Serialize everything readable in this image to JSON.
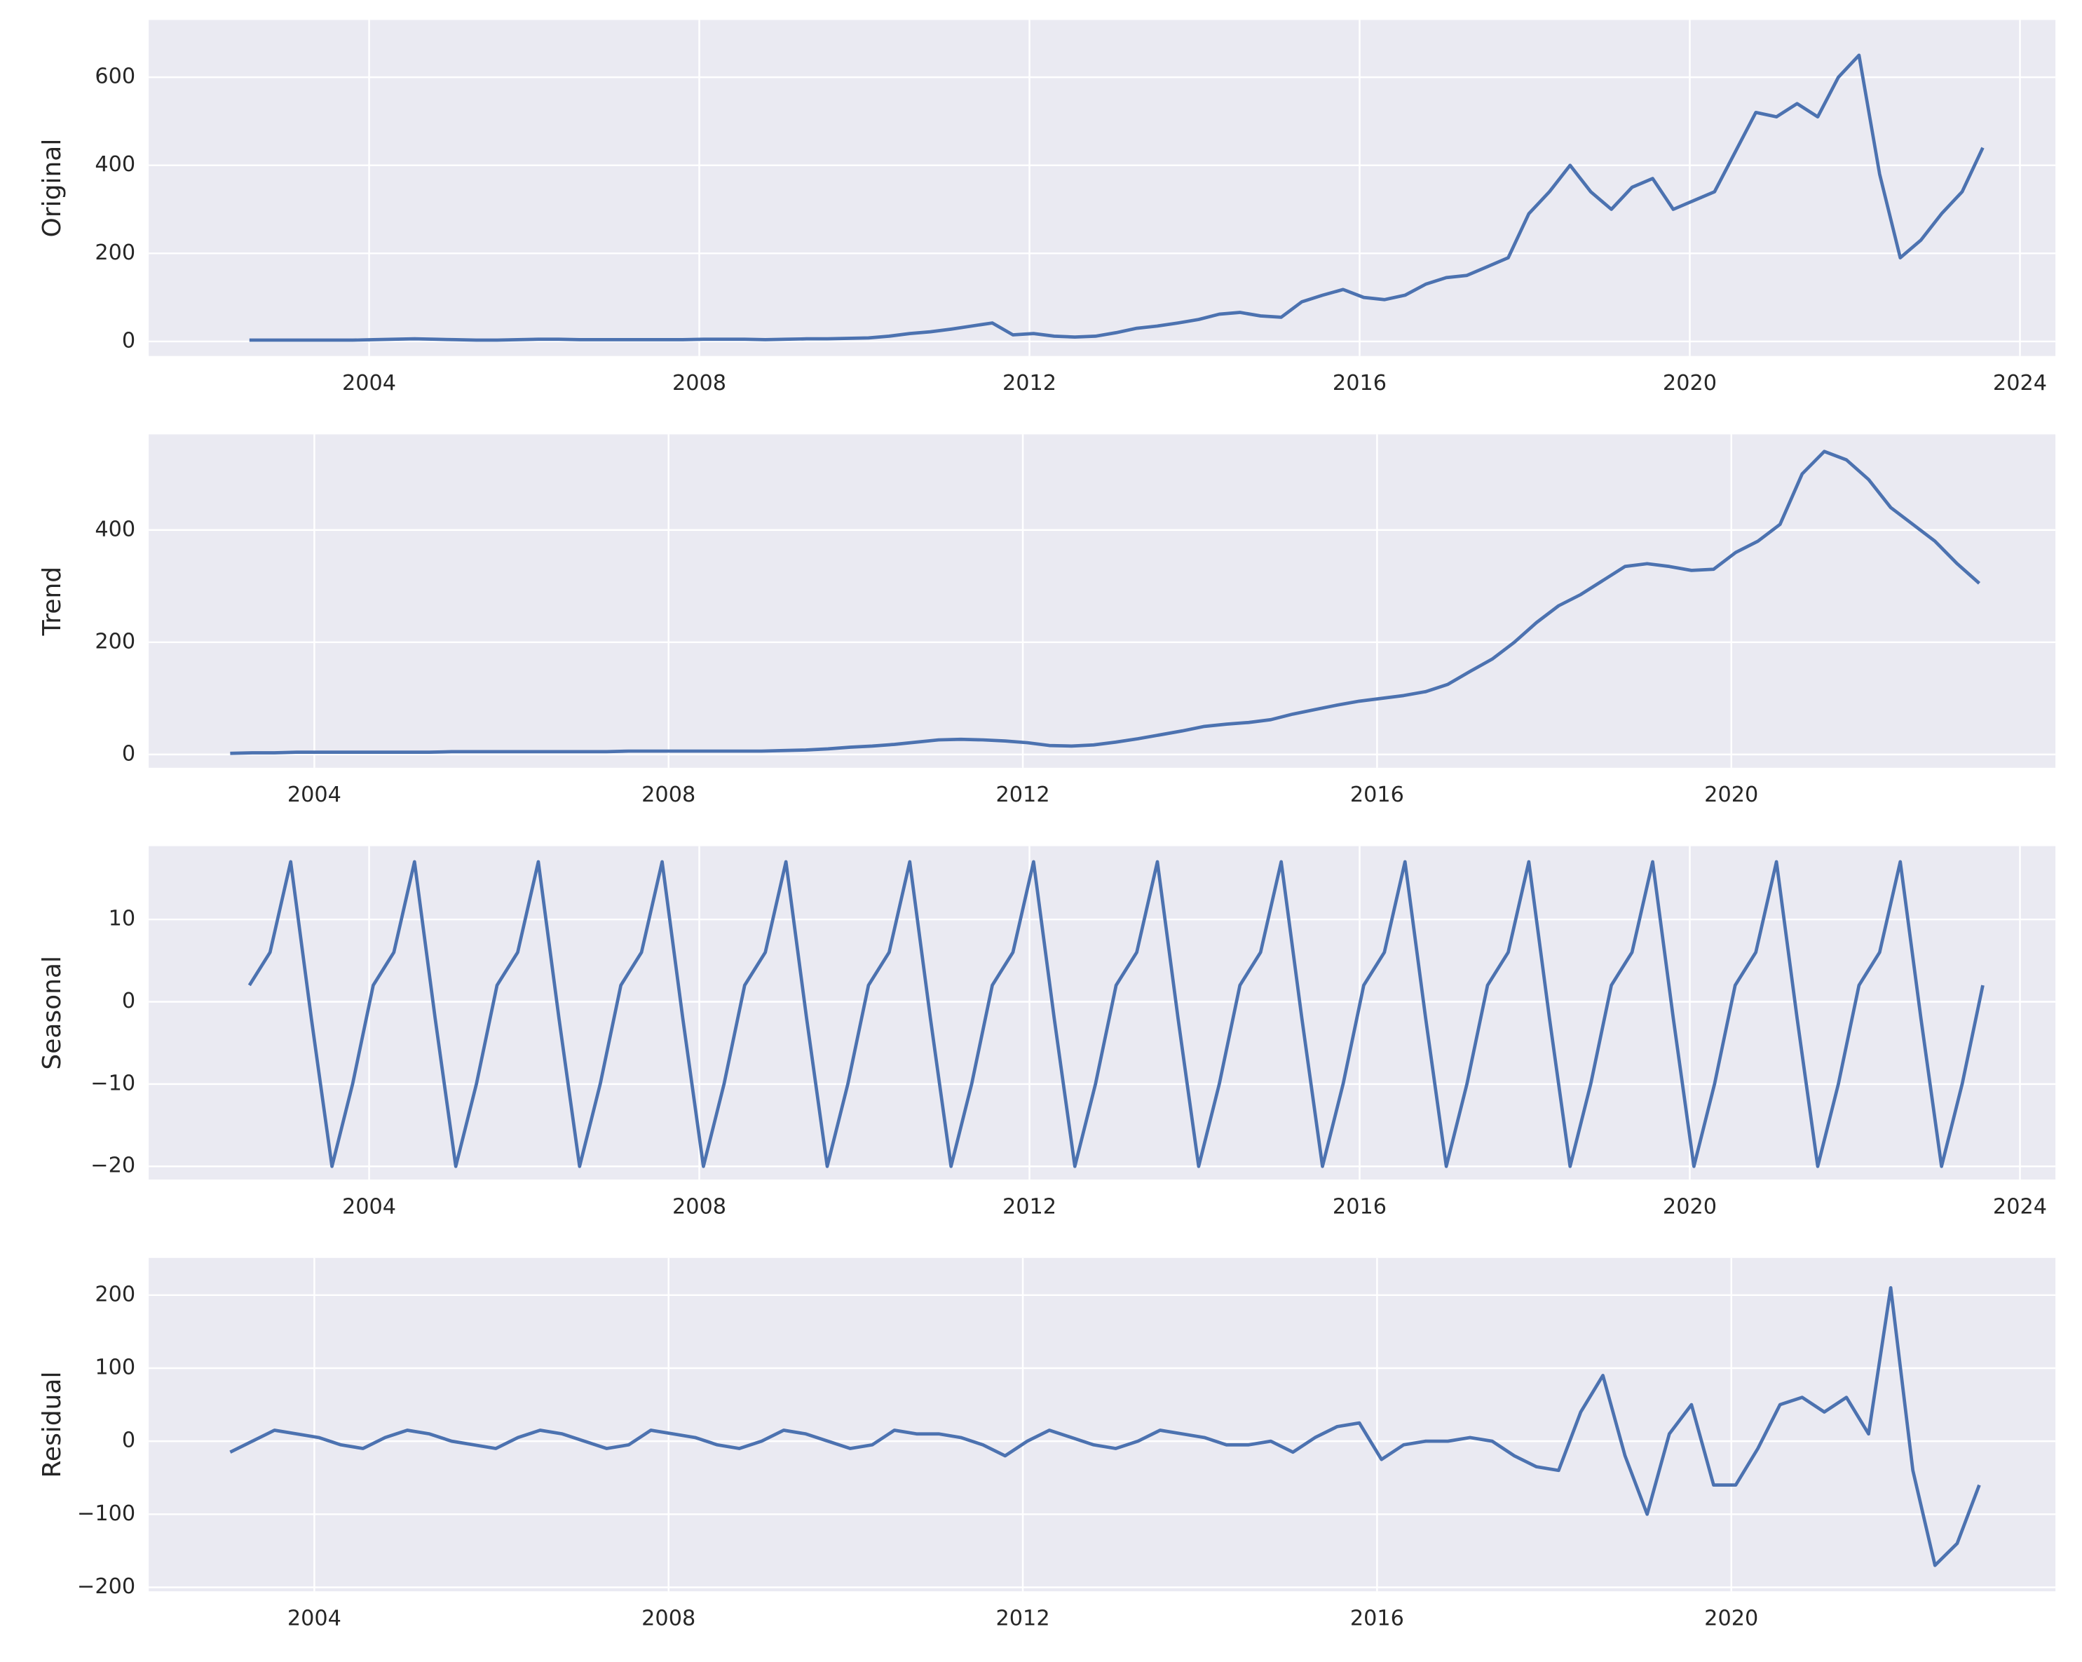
{
  "chart_data": [
    {
      "type": "line",
      "ylabel": "Original",
      "color": "#4c72b0",
      "grid": true,
      "xlim": [
        2001.33,
        2024.43
      ],
      "ylim": [
        -33,
        730
      ],
      "xticks": [
        2004,
        2008,
        2012,
        2016,
        2020,
        2024
      ],
      "yticks": [
        0,
        200,
        400,
        600
      ],
      "x": [
        2002.55,
        2002.8,
        2003.05,
        2003.3,
        2003.55,
        2003.8,
        2004.05,
        2004.3,
        2004.55,
        2004.8,
        2005.05,
        2005.3,
        2005.55,
        2005.8,
        2006.05,
        2006.3,
        2006.55,
        2006.8,
        2007.05,
        2007.3,
        2007.55,
        2007.8,
        2008.05,
        2008.3,
        2008.55,
        2008.8,
        2009.05,
        2009.3,
        2009.55,
        2009.8,
        2010.05,
        2010.3,
        2010.55,
        2010.8,
        2011.05,
        2011.3,
        2011.55,
        2011.8,
        2012.05,
        2012.3,
        2012.55,
        2012.8,
        2013.05,
        2013.3,
        2013.55,
        2013.8,
        2014.05,
        2014.3,
        2014.55,
        2014.8,
        2015.05,
        2015.3,
        2015.55,
        2015.8,
        2016.05,
        2016.3,
        2016.55,
        2016.8,
        2017.05,
        2017.3,
        2017.55,
        2017.8,
        2018.05,
        2018.3,
        2018.55,
        2018.8,
        2019.05,
        2019.3,
        2019.55,
        2019.8,
        2020.05,
        2020.3,
        2020.55,
        2020.8,
        2021.05,
        2021.3,
        2021.55,
        2021.8,
        2022.05,
        2022.3,
        2022.55,
        2022.8,
        2023.05,
        2023.3,
        2023.55
      ],
      "values": [
        3,
        3,
        3,
        3,
        3,
        3,
        4,
        5,
        6,
        5,
        4,
        3,
        3,
        4,
        5,
        5,
        4,
        4,
        4,
        4,
        4,
        4,
        5,
        5,
        5,
        4,
        5,
        6,
        6,
        7,
        8,
        12,
        18,
        22,
        28,
        35,
        42,
        15,
        18,
        12,
        10,
        12,
        20,
        30,
        35,
        42,
        50,
        62,
        66,
        58,
        55,
        90,
        105,
        118,
        100,
        95,
        105,
        130,
        145,
        150,
        170,
        190,
        290,
        340,
        400,
        340,
        300,
        350,
        370,
        300,
        320,
        340,
        430,
        520,
        510,
        540,
        510,
        600,
        650,
        380,
        190,
        230,
        290,
        340,
        440
      ]
    },
    {
      "type": "line",
      "ylabel": "Trend",
      "color": "#4c72b0",
      "grid": true,
      "xlim": [
        2002.13,
        2023.66
      ],
      "ylim": [
        -23.7,
        570.4
      ],
      "xticks": [
        2004,
        2008,
        2012,
        2016,
        2020
      ],
      "yticks": [
        0,
        200,
        400
      ],
      "x": [
        2003.05,
        2003.3,
        2003.55,
        2003.8,
        2004.05,
        2004.3,
        2004.55,
        2004.8,
        2005.05,
        2005.3,
        2005.55,
        2005.8,
        2006.05,
        2006.3,
        2006.55,
        2006.8,
        2007.05,
        2007.3,
        2007.55,
        2007.8,
        2008.05,
        2008.3,
        2008.55,
        2008.8,
        2009.05,
        2009.3,
        2009.55,
        2009.8,
        2010.05,
        2010.3,
        2010.55,
        2010.8,
        2011.05,
        2011.3,
        2011.55,
        2011.8,
        2012.05,
        2012.3,
        2012.55,
        2012.8,
        2013.05,
        2013.3,
        2013.55,
        2013.8,
        2014.05,
        2014.3,
        2014.55,
        2014.8,
        2015.05,
        2015.3,
        2015.55,
        2015.8,
        2016.05,
        2016.3,
        2016.55,
        2016.8,
        2017.05,
        2017.3,
        2017.55,
        2017.8,
        2018.05,
        2018.3,
        2018.55,
        2018.8,
        2019.05,
        2019.3,
        2019.55,
        2019.8,
        2020.05,
        2020.3,
        2020.55,
        2020.8,
        2021.05,
        2021.3,
        2021.55,
        2021.8,
        2022.05,
        2022.3,
        2022.55,
        2022.8
      ],
      "values": [
        2,
        3,
        3,
        4,
        4,
        4,
        4,
        4,
        4,
        4,
        5,
        5,
        5,
        5,
        5,
        5,
        5,
        5,
        6,
        6,
        6,
        6,
        6,
        6,
        6,
        7,
        8,
        10,
        13,
        15,
        18,
        22,
        26,
        27,
        26,
        24,
        21,
        16,
        15,
        17,
        22,
        28,
        35,
        42,
        50,
        54,
        57,
        62,
        72,
        80,
        88,
        95,
        100,
        105,
        112,
        125,
        148,
        170,
        200,
        235,
        265,
        285,
        310,
        335,
        340,
        335,
        328,
        330,
        360,
        380,
        410,
        500,
        540,
        525,
        490,
        440,
        410,
        380,
        340,
        305
      ]
    },
    {
      "type": "line",
      "ylabel": "Seasonal",
      "color": "#4c72b0",
      "grid": true,
      "xlim": [
        2001.33,
        2024.43
      ],
      "ylim": [
        -21.6,
        18.9
      ],
      "xticks": [
        2004,
        2008,
        2012,
        2016,
        2020,
        2024
      ],
      "yticks": [
        {
          "value": -20,
          "label": "−20"
        },
        {
          "value": -10,
          "label": "−10"
        },
        0,
        10
      ],
      "x": [
        2002.55,
        2002.8,
        2003.05,
        2003.3,
        2003.55,
        2003.8,
        2004.05,
        2004.3,
        2004.55,
        2004.8,
        2005.05,
        2005.3,
        2005.55,
        2005.8,
        2006.05,
        2006.3,
        2006.55,
        2006.8,
        2007.05,
        2007.3,
        2007.55,
        2007.8,
        2008.05,
        2008.3,
        2008.55,
        2008.8,
        2009.05,
        2009.3,
        2009.55,
        2009.8,
        2010.05,
        2010.3,
        2010.55,
        2010.8,
        2011.05,
        2011.3,
        2011.55,
        2011.8,
        2012.05,
        2012.3,
        2012.55,
        2012.8,
        2013.05,
        2013.3,
        2013.55,
        2013.8,
        2014.05,
        2014.3,
        2014.55,
        2014.8,
        2015.05,
        2015.3,
        2015.55,
        2015.8,
        2016.05,
        2016.3,
        2016.55,
        2016.8,
        2017.05,
        2017.3,
        2017.55,
        2017.8,
        2018.05,
        2018.3,
        2018.55,
        2018.8,
        2019.05,
        2019.3,
        2019.55,
        2019.8,
        2020.05,
        2020.3,
        2020.55,
        2020.8,
        2021.05,
        2021.3,
        2021.55,
        2021.8,
        2022.05,
        2022.3,
        2022.55,
        2022.8,
        2023.05,
        2023.3,
        2023.55
      ],
      "values": [
        2,
        6,
        17,
        -2,
        -20,
        -10,
        2,
        6,
        17,
        -2,
        -20,
        -10,
        2,
        6,
        17,
        -2,
        -20,
        -10,
        2,
        6,
        17,
        -2,
        -20,
        -10,
        2,
        6,
        17,
        -2,
        -20,
        -10,
        2,
        6,
        17,
        -2,
        -20,
        -10,
        2,
        6,
        17,
        -2,
        -20,
        -10,
        2,
        6,
        17,
        -2,
        -20,
        -10,
        2,
        6,
        17,
        -2,
        -20,
        -10,
        2,
        6,
        17,
        -2,
        -20,
        -10,
        2,
        6,
        17,
        -2,
        -20,
        -10,
        2,
        6,
        17,
        -2,
        -20,
        -10,
        2,
        6,
        17,
        -2,
        -20,
        -10,
        2,
        6,
        17,
        -2,
        -20,
        -10,
        2
      ]
    },
    {
      "type": "line",
      "ylabel": "Residual",
      "color": "#4c72b0",
      "grid": true,
      "xlim": [
        2002.13,
        2023.66
      ],
      "ylim": [
        -205.5,
        250.9
      ],
      "xticks": [
        2004,
        2008,
        2012,
        2016,
        2020
      ],
      "yticks": [
        {
          "value": -200,
          "label": "−200"
        },
        {
          "value": -100,
          "label": "−100"
        },
        0,
        100,
        200
      ],
      "x": [
        2003.05,
        2003.3,
        2003.55,
        2003.8,
        2004.05,
        2004.3,
        2004.55,
        2004.8,
        2005.05,
        2005.3,
        2005.55,
        2005.8,
        2006.05,
        2006.3,
        2006.55,
        2006.8,
        2007.05,
        2007.3,
        2007.55,
        2007.8,
        2008.05,
        2008.3,
        2008.55,
        2008.8,
        2009.05,
        2009.3,
        2009.55,
        2009.8,
        2010.05,
        2010.3,
        2010.55,
        2010.8,
        2011.05,
        2011.3,
        2011.55,
        2011.8,
        2012.05,
        2012.3,
        2012.55,
        2012.8,
        2013.05,
        2013.3,
        2013.55,
        2013.8,
        2014.05,
        2014.3,
        2014.55,
        2014.8,
        2015.05,
        2015.3,
        2015.55,
        2015.8,
        2016.05,
        2016.3,
        2016.55,
        2016.8,
        2017.05,
        2017.3,
        2017.55,
        2017.8,
        2018.05,
        2018.3,
        2018.55,
        2018.8,
        2019.05,
        2019.3,
        2019.55,
        2019.8,
        2020.05,
        2020.3,
        2020.55,
        2020.8,
        2021.05,
        2021.3,
        2021.55,
        2021.8,
        2022.05,
        2022.3,
        2022.55,
        2022.8
      ],
      "values": [
        -15,
        0,
        15,
        10,
        5,
        -5,
        -10,
        5,
        15,
        10,
        0,
        -5,
        -10,
        5,
        15,
        10,
        0,
        -10,
        -5,
        15,
        10,
        5,
        -5,
        -10,
        0,
        15,
        10,
        0,
        -10,
        -5,
        15,
        10,
        10,
        5,
        -5,
        -20,
        0,
        15,
        5,
        -5,
        -10,
        0,
        15,
        10,
        5,
        -5,
        -5,
        0,
        -15,
        5,
        20,
        25,
        -25,
        -5,
        0,
        0,
        5,
        0,
        -20,
        -35,
        -40,
        40,
        90,
        -20,
        -100,
        10,
        50,
        -60,
        -60,
        -10,
        50,
        60,
        40,
        60,
        10,
        210,
        -40,
        -170,
        -140,
        -60
      ]
    }
  ]
}
